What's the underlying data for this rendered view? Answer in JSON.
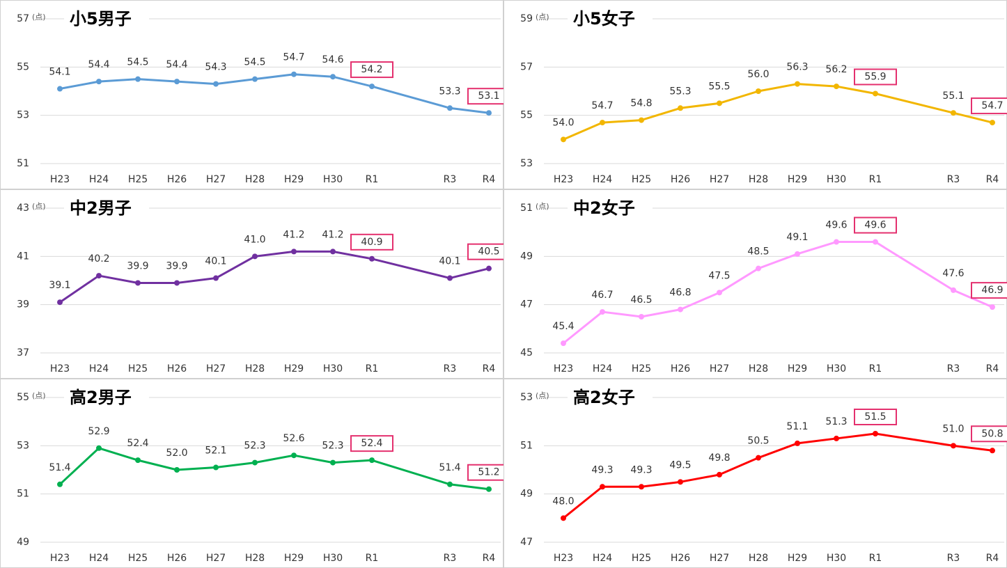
{
  "chart_data": [
    {
      "type": "line",
      "title": "小5男子",
      "unit": "(点)",
      "categories": [
        "H23",
        "H24",
        "H25",
        "H26",
        "H27",
        "H28",
        "H29",
        "H30",
        "R1",
        null,
        "R3",
        "R4"
      ],
      "series": [
        {
          "name": "小5男子",
          "color": "#5b9bd5",
          "values": [
            54.1,
            54.4,
            54.5,
            54.4,
            54.3,
            54.5,
            54.7,
            54.6,
            54.2,
            null,
            53.3,
            53.1
          ],
          "value_labels": [
            "54.1",
            "54.4",
            "54.5",
            "54.4",
            "54.3",
            "54.5",
            "54.7",
            "54.6",
            "54.2",
            null,
            "53.3",
            "53.1"
          ]
        }
      ],
      "ylim": [
        51,
        57
      ],
      "yticks": [
        51,
        53,
        55,
        57
      ],
      "grid": true,
      "highlight_categories": [
        "R1",
        "R4"
      ],
      "highlight_color": "#e4306e"
    },
    {
      "type": "line",
      "title": "小5女子",
      "unit": "(点)",
      "categories": [
        "H23",
        "H24",
        "H25",
        "H26",
        "H27",
        "H28",
        "H29",
        "H30",
        "R1",
        null,
        "R3",
        "R4"
      ],
      "series": [
        {
          "name": "小5女子",
          "color": "#f2b600",
          "values": [
            54.0,
            54.7,
            54.8,
            55.3,
            55.5,
            56.0,
            56.3,
            56.2,
            55.9,
            null,
            55.1,
            54.7
          ],
          "value_labels": [
            "54.0",
            "54.7",
            "54.8",
            "55.3",
            "55.5",
            "56.0",
            "56.3",
            "56.2",
            "55.9",
            null,
            "55.1",
            "54.7"
          ]
        }
      ],
      "ylim": [
        53,
        59
      ],
      "yticks": [
        53,
        55,
        57,
        59
      ],
      "grid": true,
      "highlight_categories": [
        "R1",
        "R4"
      ],
      "highlight_color": "#e4306e"
    },
    {
      "type": "line",
      "title": "中2男子",
      "unit": "(点)",
      "categories": [
        "H23",
        "H24",
        "H25",
        "H26",
        "H27",
        "H28",
        "H29",
        "H30",
        "R1",
        null,
        "R3",
        "R4"
      ],
      "series": [
        {
          "name": "中2男子",
          "color": "#7030a0",
          "values": [
            39.1,
            40.2,
            39.9,
            39.9,
            40.1,
            41.0,
            41.2,
            41.2,
            40.9,
            null,
            40.1,
            40.5
          ],
          "value_labels": [
            "39.1",
            "40.2",
            "39.9",
            "39.9",
            "40.1",
            "41.0",
            "41.2",
            "41.2",
            "40.9",
            null,
            "40.1",
            "40.5"
          ]
        }
      ],
      "ylim": [
        37,
        43
      ],
      "yticks": [
        37,
        39,
        41,
        43
      ],
      "grid": true,
      "highlight_categories": [
        "R1",
        "R4"
      ],
      "highlight_color": "#e4306e"
    },
    {
      "type": "line",
      "title": "中2女子",
      "unit": "(点)",
      "categories": [
        "H23",
        "H24",
        "H25",
        "H26",
        "H27",
        "H28",
        "H29",
        "H30",
        "R1",
        null,
        "R3",
        "R4"
      ],
      "series": [
        {
          "name": "中2女子",
          "color": "#ff99ff",
          "values": [
            45.4,
            46.7,
            46.5,
            46.8,
            47.5,
            48.5,
            49.1,
            49.6,
            49.6,
            null,
            47.6,
            46.9
          ],
          "value_labels": [
            "45.4",
            "46.7",
            "46.5",
            "46.8",
            "47.5",
            "48.5",
            "49.1",
            "49.6",
            "49.6",
            null,
            "47.6",
            "46.9"
          ]
        }
      ],
      "ylim": [
        45,
        51
      ],
      "yticks": [
        45,
        47,
        49,
        51
      ],
      "grid": true,
      "highlight_categories": [
        "R1",
        "R4"
      ],
      "highlight_color": "#e4306e"
    },
    {
      "type": "line",
      "title": "高2男子",
      "unit": "(点)",
      "categories": [
        "H23",
        "H24",
        "H25",
        "H26",
        "H27",
        "H28",
        "H29",
        "H30",
        "R1",
        null,
        "R3",
        "R4"
      ],
      "series": [
        {
          "name": "高2男子",
          "color": "#00b050",
          "values": [
            51.4,
            52.9,
            52.4,
            52.0,
            52.1,
            52.3,
            52.6,
            52.3,
            52.4,
            null,
            51.4,
            51.2
          ],
          "value_labels": [
            "51.4",
            "52.9",
            "52.4",
            "52.0",
            "52.1",
            "52.3",
            "52.6",
            "52.3",
            "52.4",
            null,
            "51.4",
            "51.2"
          ]
        }
      ],
      "ylim": [
        49,
        55
      ],
      "yticks": [
        49,
        51,
        53,
        55
      ],
      "grid": true,
      "highlight_categories": [
        "R1",
        "R4"
      ],
      "highlight_color": "#e4306e"
    },
    {
      "type": "line",
      "title": "高2女子",
      "unit": "(点)",
      "categories": [
        "H23",
        "H24",
        "H25",
        "H26",
        "H27",
        "H28",
        "H29",
        "H30",
        "R1",
        null,
        "R3",
        "R4"
      ],
      "series": [
        {
          "name": "高2女子",
          "color": "#ff0000",
          "values": [
            48.0,
            49.3,
            49.3,
            49.5,
            49.8,
            50.5,
            51.1,
            51.3,
            51.5,
            null,
            51.0,
            50.8
          ],
          "value_labels": [
            "48.0",
            "49.3",
            "49.3",
            "49.5",
            "49.8",
            "50.5",
            "51.1",
            "51.3",
            "51.5",
            null,
            "51.0",
            "50.8"
          ]
        }
      ],
      "ylim": [
        47,
        53
      ],
      "yticks": [
        47,
        49,
        51,
        53
      ],
      "grid": true,
      "highlight_categories": [
        "R1",
        "R4"
      ],
      "highlight_color": "#e4306e"
    }
  ]
}
